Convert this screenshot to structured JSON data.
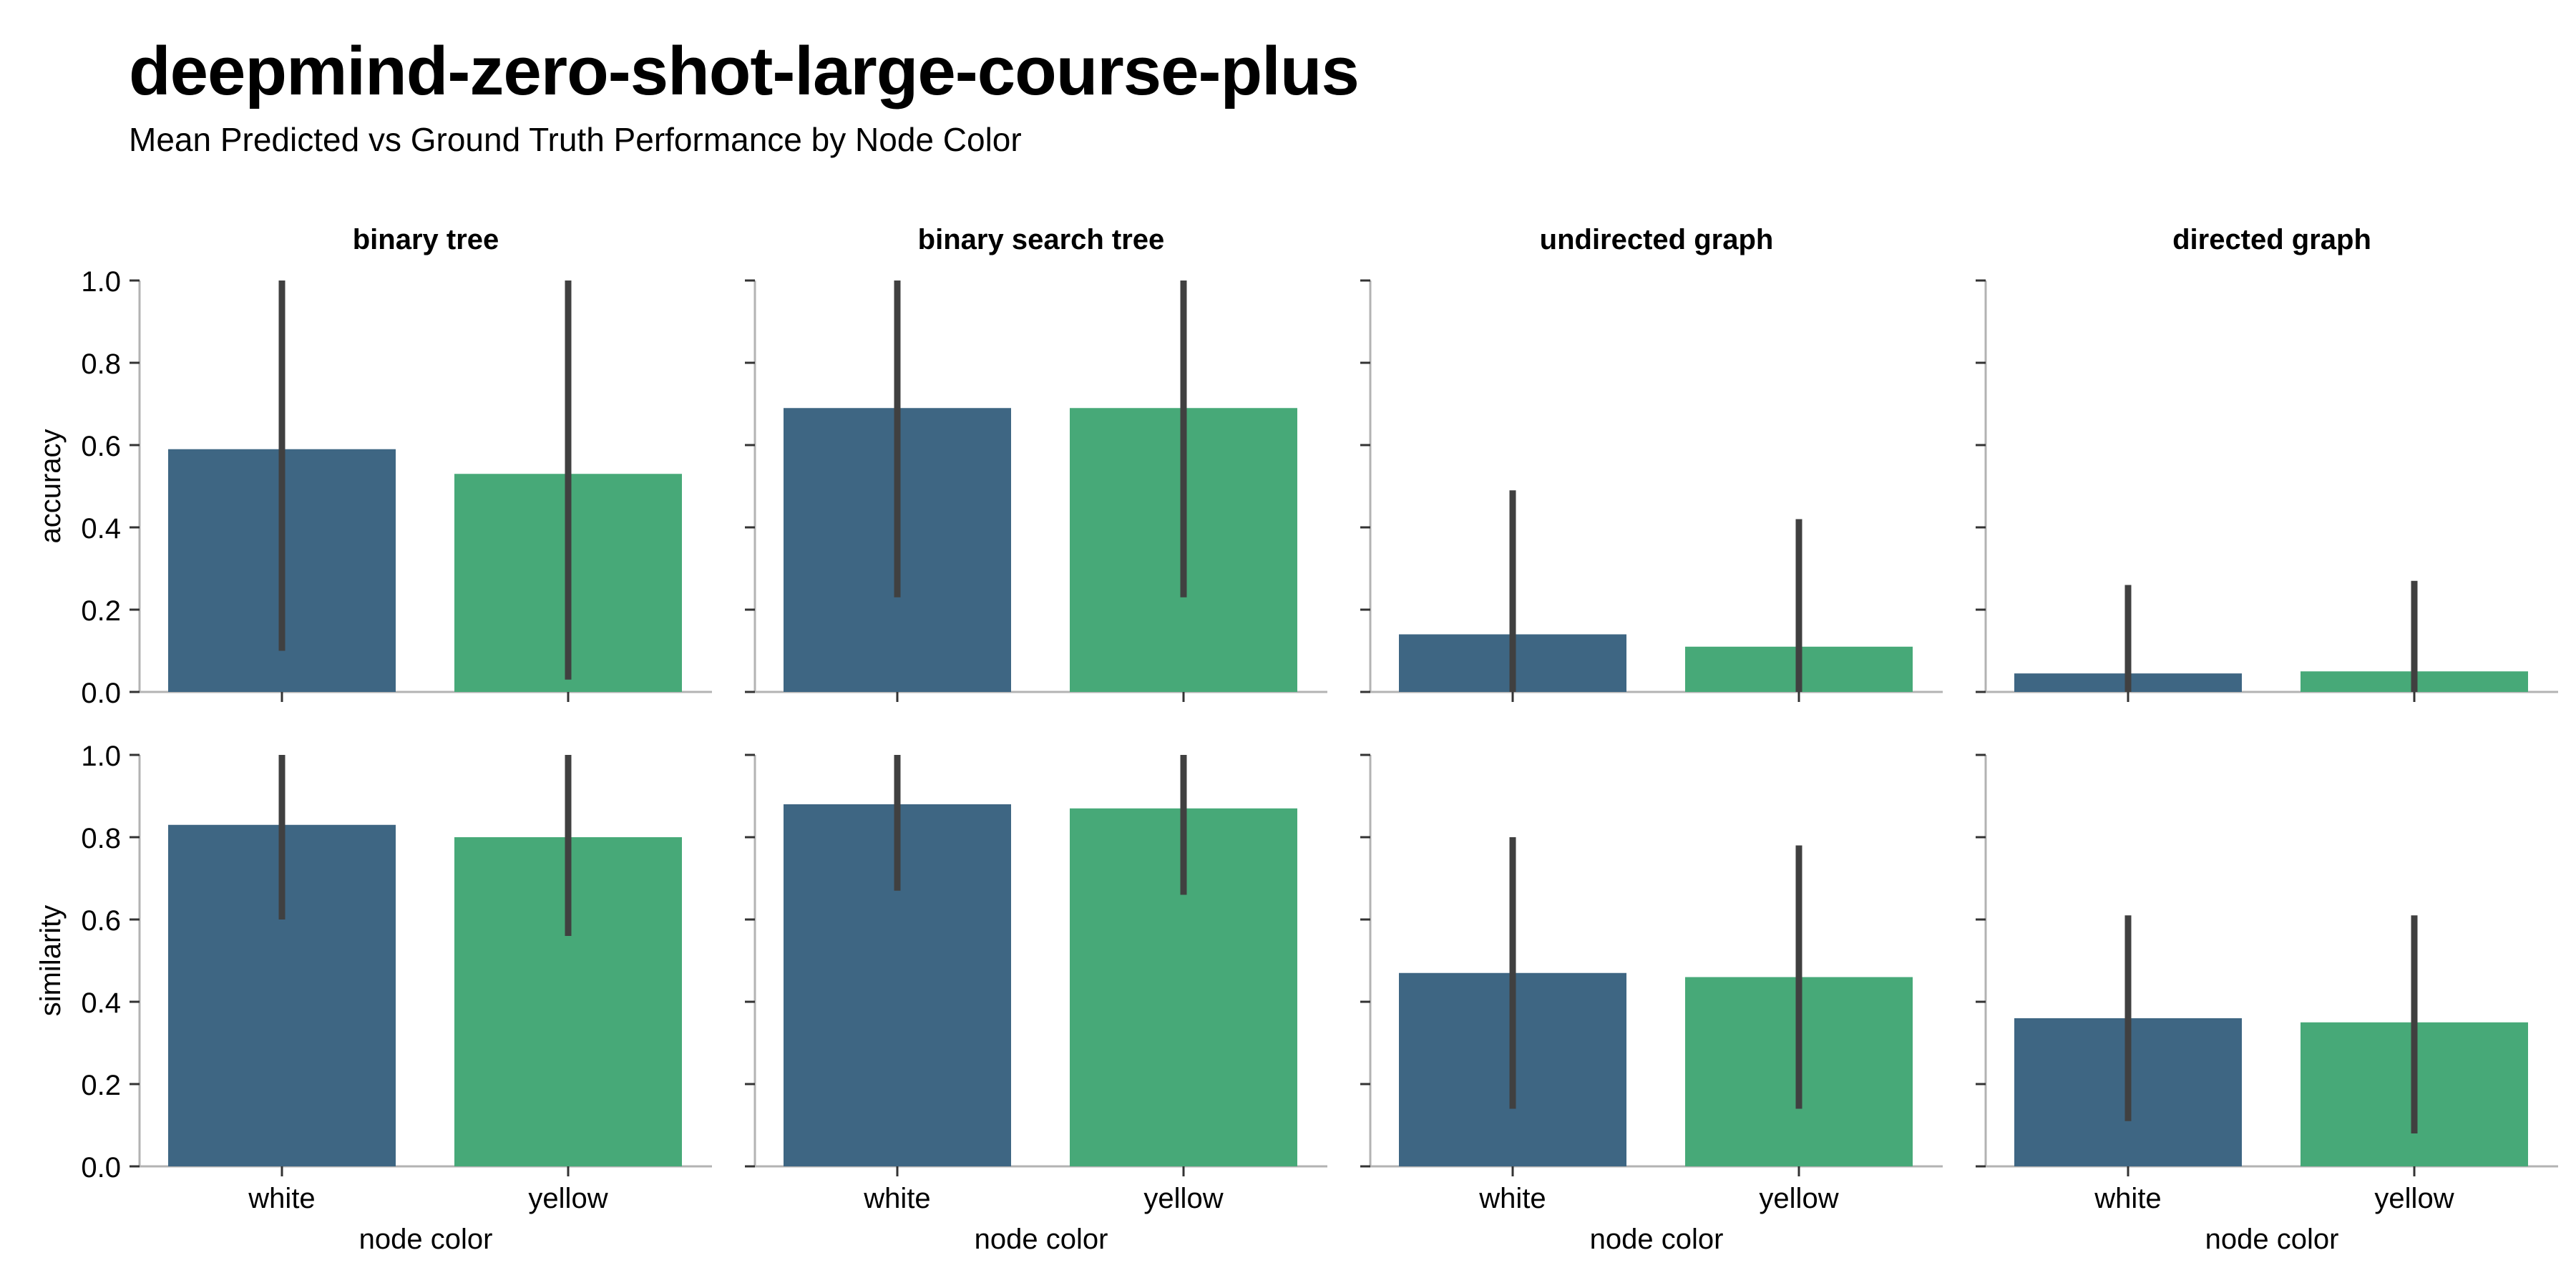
{
  "header": {
    "title": "deepmind-zero-shot-large-course-plus",
    "subtitle": "Mean Predicted vs Ground Truth Performance by Node Color"
  },
  "colors": {
    "white_bar": "#3e6683",
    "yellow_bar": "#47a978",
    "error_bar": "#404040",
    "axis": "#b3b3b3"
  },
  "chart_data": {
    "type": "bar",
    "layout": "facet grid 2 rows x 4 columns",
    "columns": [
      "binary tree",
      "binary search tree",
      "undirected graph",
      "directed graph"
    ],
    "rows": [
      "accuracy",
      "similarity"
    ],
    "categories": [
      "white",
      "yellow"
    ],
    "xlabel": "node color",
    "ylim": [
      0,
      1.0
    ],
    "yticks": [
      "0.0",
      "0.2",
      "0.4",
      "0.6",
      "0.8",
      "1.0"
    ],
    "grid": false,
    "legend": "none",
    "panels": [
      {
        "row": "accuracy",
        "column": "binary tree",
        "values": [
          0.59,
          0.53
        ],
        "error_low": [
          0.1,
          0.03
        ],
        "error_high": [
          1.0,
          1.0
        ]
      },
      {
        "row": "accuracy",
        "column": "binary search tree",
        "values": [
          0.69,
          0.69
        ],
        "error_low": [
          0.23,
          0.23
        ],
        "error_high": [
          1.0,
          1.0
        ]
      },
      {
        "row": "accuracy",
        "column": "undirected graph",
        "values": [
          0.14,
          0.11
        ],
        "error_low": [
          0.0,
          0.0
        ],
        "error_high": [
          0.49,
          0.42
        ]
      },
      {
        "row": "accuracy",
        "column": "directed graph",
        "values": [
          0.045,
          0.05
        ],
        "error_low": [
          0.0,
          0.0
        ],
        "error_high": [
          0.26,
          0.27
        ]
      },
      {
        "row": "similarity",
        "column": "binary tree",
        "values": [
          0.83,
          0.8
        ],
        "error_low": [
          0.6,
          0.56
        ],
        "error_high": [
          1.0,
          1.0
        ]
      },
      {
        "row": "similarity",
        "column": "binary search tree",
        "values": [
          0.88,
          0.87
        ],
        "error_low": [
          0.67,
          0.66
        ],
        "error_high": [
          1.0,
          1.0
        ]
      },
      {
        "row": "similarity",
        "column": "undirected graph",
        "values": [
          0.47,
          0.46
        ],
        "error_low": [
          0.14,
          0.14
        ],
        "error_high": [
          0.8,
          0.78
        ]
      },
      {
        "row": "similarity",
        "column": "directed graph",
        "values": [
          0.36,
          0.35
        ],
        "error_low": [
          0.11,
          0.08
        ],
        "error_high": [
          0.61,
          0.61
        ]
      }
    ]
  }
}
